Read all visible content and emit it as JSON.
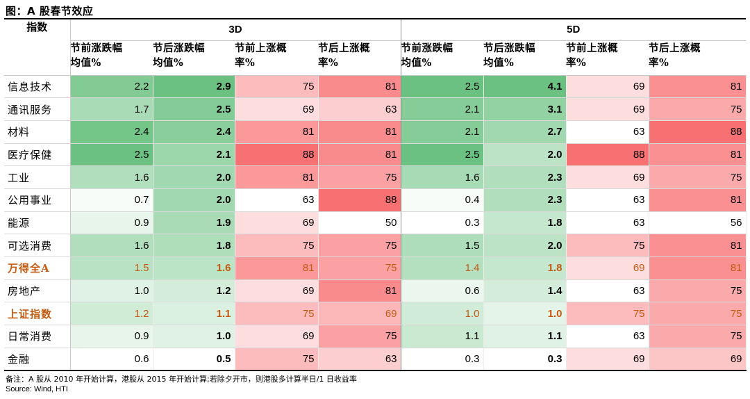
{
  "title": "图：A 股春节效应",
  "table": {
    "row_header": "指数",
    "groups": [
      "3D",
      "5D"
    ],
    "metrics": [
      [
        "节前涨跌幅",
        "均值%"
      ],
      [
        "节后涨跌幅",
        "均值%"
      ],
      [
        "节前上涨概",
        "率%"
      ],
      [
        "节后上涨概",
        "率%"
      ],
      [
        "节前涨跌幅",
        "均值%"
      ],
      [
        "节后涨跌幅",
        "均值%"
      ],
      [
        "节前上涨概",
        "率%"
      ],
      [
        "节后上涨概",
        "率%"
      ]
    ]
  },
  "chart_data": {
    "type": "table",
    "title": "图：A 股春节效应",
    "groups": [
      "3D",
      "5D"
    ],
    "columns": [
      "节前涨跌幅均值%",
      "节后涨跌幅均值%",
      "节前上涨概率%",
      "节后上涨概率%"
    ],
    "rows": [
      {
        "name": "信息技术",
        "values": [
          "2.2",
          "2.9",
          "75",
          "81",
          "2.5",
          "4.1",
          "69",
          "81"
        ]
      },
      {
        "name": "通讯服务",
        "values": [
          "1.7",
          "2.5",
          "69",
          "63",
          "2.1",
          "3.1",
          "69",
          "75"
        ]
      },
      {
        "name": "材料",
        "values": [
          "2.4",
          "2.4",
          "81",
          "81",
          "2.1",
          "2.7",
          "63",
          "88"
        ]
      },
      {
        "name": "医疗保健",
        "values": [
          "2.5",
          "2.1",
          "88",
          "81",
          "2.5",
          "2.0",
          "88",
          "81"
        ]
      },
      {
        "name": "工业",
        "values": [
          "1.6",
          "2.0",
          "81",
          "75",
          "1.6",
          "2.3",
          "69",
          "75"
        ]
      },
      {
        "name": "公用事业",
        "values": [
          "0.7",
          "2.0",
          "63",
          "88",
          "0.4",
          "2.3",
          "63",
          "81"
        ]
      },
      {
        "name": "能源",
        "values": [
          "0.9",
          "1.9",
          "69",
          "50",
          "0.3",
          "1.8",
          "63",
          "56"
        ]
      },
      {
        "name": "可选消费",
        "values": [
          "1.6",
          "1.8",
          "75",
          "75",
          "1.5",
          "2.0",
          "75",
          "81"
        ]
      },
      {
        "name": "万得全A",
        "values": [
          "1.5",
          "1.6",
          "81",
          "75",
          "1.4",
          "1.8",
          "69",
          "81"
        ],
        "highlight": true
      },
      {
        "name": "房地产",
        "values": [
          "1.0",
          "1.2",
          "69",
          "81",
          "0.6",
          "1.4",
          "63",
          "75"
        ]
      },
      {
        "name": "上证指数",
        "values": [
          "1.2",
          "1.1",
          "75",
          "69",
          "1.0",
          "1.0",
          "75",
          "75"
        ],
        "highlight": true
      },
      {
        "name": "日常消费",
        "values": [
          "0.9",
          "1.0",
          "69",
          "75",
          "1.1",
          "1.1",
          "63",
          "75"
        ]
      },
      {
        "name": "金融",
        "values": [
          "0.6",
          "0.5",
          "75",
          "63",
          "0.3",
          "0.3",
          "69",
          "69"
        ]
      }
    ]
  },
  "colors": {
    "green_high": "#63be7b",
    "red_high": "#f8696b",
    "low": "#ffffff",
    "highlight_text": "#c55a11"
  },
  "footer": {
    "note": "备注：A 股从 2010 年开始计算，港股从 2015 年开始计算;若除夕开市，则港股多计算半日/1 日收益率",
    "source": "Source: Wind, HTI"
  }
}
